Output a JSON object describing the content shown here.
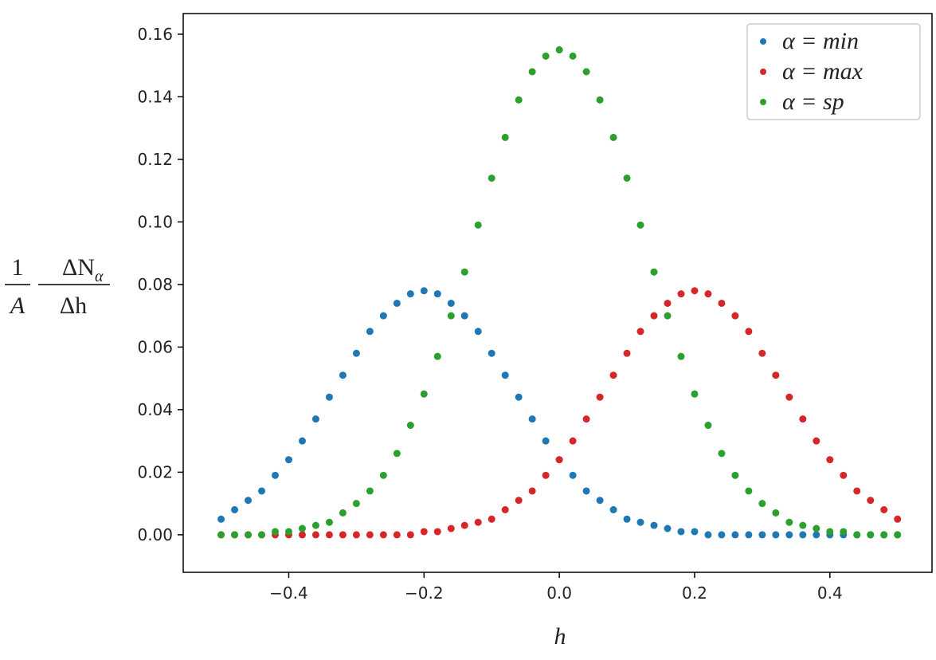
{
  "chart_data": {
    "type": "scatter",
    "xlabel": "h",
    "ylabel": {
      "left_numerator": "1",
      "left_denominator": "A",
      "right_numerator": "ΔN",
      "right_numerator_subscript": "α",
      "right_denominator": "Δh"
    },
    "x": [
      -0.5,
      -0.48,
      -0.46,
      -0.44,
      -0.42,
      -0.4,
      -0.38,
      -0.36,
      -0.34,
      -0.32,
      -0.3,
      -0.28,
      -0.26,
      -0.24,
      -0.22,
      -0.2,
      -0.18,
      -0.16,
      -0.14,
      -0.12,
      -0.1,
      -0.08,
      -0.06,
      -0.04,
      -0.02,
      0,
      0.02,
      0.04,
      0.06,
      0.08,
      0.1,
      0.12,
      0.14,
      0.16,
      0.18,
      0.2,
      0.22,
      0.24,
      0.26,
      0.28,
      0.3,
      0.32,
      0.34,
      0.36,
      0.38,
      0.4,
      0.42,
      0.44,
      0.46,
      0.48,
      0.5
    ],
    "series": [
      {
        "name": "α = min",
        "color": "#1f77b4",
        "values": [
          0.005,
          0.008,
          0.011,
          0.014,
          0.019,
          0.024,
          0.03,
          0.037,
          0.044,
          0.051,
          0.058,
          0.065,
          0.07,
          0.074,
          0.077,
          0.078,
          0.077,
          0.074,
          0.07,
          0.065,
          0.058,
          0.051,
          0.044,
          0.037,
          0.03,
          0.024,
          0.019,
          0.014,
          0.011,
          0.008,
          0.005,
          0.004,
          0.003,
          0.002,
          0.001,
          0.001,
          0,
          0,
          0,
          0,
          0,
          0,
          0,
          0,
          0,
          0,
          0,
          0,
          0,
          0,
          0
        ]
      },
      {
        "name": "α = max",
        "color": "#d62728",
        "values": [
          0,
          0,
          0,
          0,
          0,
          0,
          0,
          0,
          0,
          0,
          0,
          0,
          0,
          0,
          0,
          0.001,
          0.001,
          0.002,
          0.003,
          0.004,
          0.005,
          0.008,
          0.011,
          0.014,
          0.019,
          0.024,
          0.03,
          0.037,
          0.044,
          0.051,
          0.058,
          0.065,
          0.07,
          0.074,
          0.077,
          0.078,
          0.077,
          0.074,
          0.07,
          0.065,
          0.058,
          0.051,
          0.044,
          0.037,
          0.03,
          0.024,
          0.019,
          0.014,
          0.011,
          0.008,
          0.005
        ]
      },
      {
        "name": "α = sp",
        "color": "#2ca02c",
        "values": [
          0,
          0,
          0,
          0,
          0.001,
          0.001,
          0.002,
          0.003,
          0.004,
          0.007,
          0.01,
          0.014,
          0.019,
          0.026,
          0.035,
          0.045,
          0.057,
          0.07,
          0.084,
          0.099,
          0.114,
          0.127,
          0.139,
          0.148,
          0.153,
          0.155,
          0.153,
          0.148,
          0.139,
          0.127,
          0.114,
          0.099,
          0.084,
          0.07,
          0.057,
          0.045,
          0.035,
          0.026,
          0.019,
          0.014,
          0.01,
          0.007,
          0.004,
          0.003,
          0.002,
          0.001,
          0.001,
          0,
          0,
          0,
          0
        ]
      }
    ],
    "xlim": [
      -0.556,
      0.551
    ],
    "ylim": [
      -0.012,
      0.1666
    ],
    "xticks": [
      {
        "value": -0.4,
        "label": "−0.4"
      },
      {
        "value": -0.2,
        "label": "−0.2"
      },
      {
        "value": 0,
        "label": "0.0"
      },
      {
        "value": 0.2,
        "label": "0.2"
      },
      {
        "value": 0.4,
        "label": "0.4"
      }
    ],
    "yticks": [
      {
        "value": 0,
        "label": "0.00"
      },
      {
        "value": 0.02,
        "label": "0.02"
      },
      {
        "value": 0.04,
        "label": "0.04"
      },
      {
        "value": 0.06,
        "label": "0.06"
      },
      {
        "value": 0.08,
        "label": "0.08"
      },
      {
        "value": 0.1,
        "label": "0.10"
      },
      {
        "value": 0.12,
        "label": "0.12"
      },
      {
        "value": 0.14,
        "label": "0.14"
      },
      {
        "value": 0.16,
        "label": "0.16"
      }
    ],
    "legend": "upper right",
    "grid": false
  }
}
